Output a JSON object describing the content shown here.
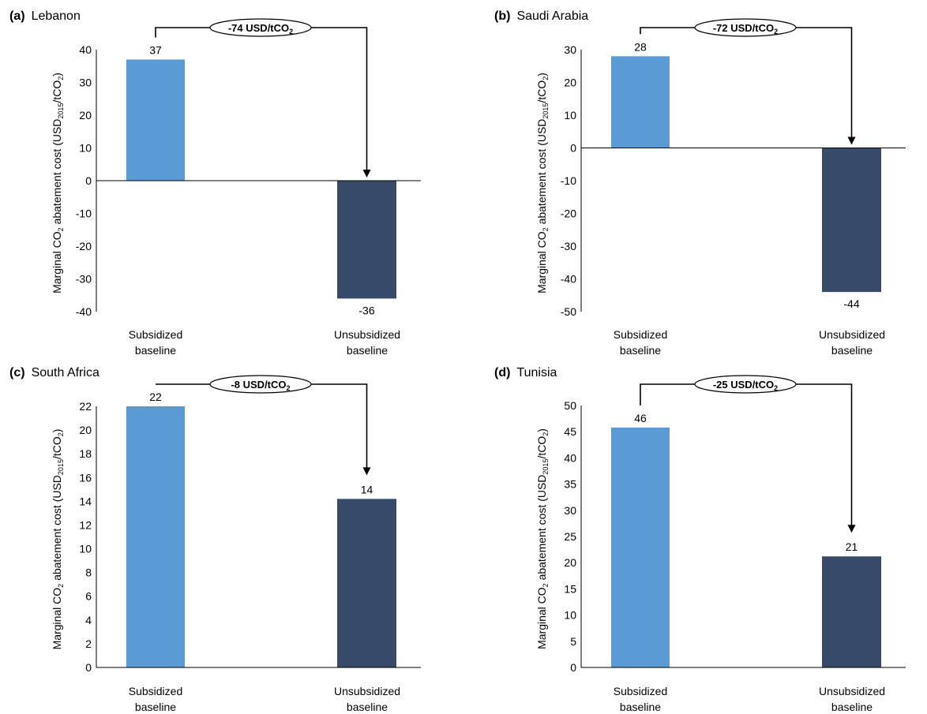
{
  "figure": {
    "ylabel_prefix": "Marginal CO",
    "ylabel_sub_co2": "2",
    "ylabel_middle": " abatement cost (USD",
    "ylabel_sub_year": "2015",
    "ylabel_tail": "/tCO",
    "ylabel_sub_tail": "2",
    "ylabel_close": ")",
    "colors": {
      "subsidized": "#5B9BD5",
      "unsubsidized": "#374A69",
      "axis": "#000000"
    }
  },
  "chart_data": [
    {
      "type": "bar",
      "panel_letter": "(a)",
      "title": "Lebanon",
      "categories": [
        {
          "line1": "Subsidized",
          "line2": "baseline"
        },
        {
          "line1": "Unsubsidized",
          "line2": "baseline"
        }
      ],
      "values": [
        37,
        -36
      ],
      "value_labels": [
        "37",
        "-36"
      ],
      "ylim": [
        -40,
        40
      ],
      "yticks": [
        40,
        30,
        20,
        10,
        0,
        -10,
        -20,
        -30,
        -40
      ],
      "ytick_labels": [
        "40",
        "30",
        "20",
        "10",
        "0",
        "-10",
        "-20",
        "-30",
        "-40"
      ],
      "change_label": "-74 USD/tCO",
      "change_label_sub": "2"
    },
    {
      "type": "bar",
      "panel_letter": "(b)",
      "title": "Saudi Arabia",
      "categories": [
        {
          "line1": "Subsidized",
          "line2": "baseline"
        },
        {
          "line1": "Unsubsidized",
          "line2": "baseline"
        }
      ],
      "values": [
        28,
        -44
      ],
      "value_labels": [
        "28",
        "-44"
      ],
      "ylim": [
        -50,
        30
      ],
      "yticks": [
        30,
        20,
        10,
        0,
        -10,
        -20,
        -30,
        -40,
        -50
      ],
      "ytick_labels": [
        "30",
        "20",
        "10",
        "0",
        "-10",
        "-20",
        "-30",
        "-40",
        "-50"
      ],
      "change_label": "-72 USD/tCO",
      "change_label_sub": "2"
    },
    {
      "type": "bar",
      "panel_letter": "(c)",
      "title": "South Africa",
      "categories": [
        {
          "line1": "Subsidized",
          "line2": "baseline"
        },
        {
          "line1": "Unsubsidized",
          "line2": "baseline"
        }
      ],
      "values": [
        22,
        14.2
      ],
      "value_labels": [
        "22",
        "14"
      ],
      "ylim": [
        0,
        22
      ],
      "yticks": [
        22,
        20,
        18,
        16,
        14,
        12,
        10,
        8,
        6,
        4,
        2,
        0
      ],
      "ytick_labels": [
        "22",
        "20",
        "18",
        "16",
        "14",
        "12",
        "10",
        "8",
        "6",
        "4",
        "2",
        "0"
      ],
      "change_label": "-8 USD/tCO",
      "change_label_sub": "2"
    },
    {
      "type": "bar",
      "panel_letter": "(d)",
      "title": "Tunisia",
      "categories": [
        {
          "line1": "Subsidized",
          "line2": "baseline"
        },
        {
          "line1": "Unsubsidized",
          "line2": "baseline"
        }
      ],
      "values": [
        45.8,
        21.2
      ],
      "value_labels": [
        "46",
        "21"
      ],
      "ylim": [
        0,
        50
      ],
      "yticks": [
        50,
        45,
        40,
        35,
        30,
        25,
        20,
        15,
        10,
        5,
        0
      ],
      "ytick_labels": [
        "50",
        "45",
        "40",
        "35",
        "30",
        "25",
        "20",
        "15",
        "10",
        "5",
        "0"
      ],
      "change_label": "-25 USD/tCO",
      "change_label_sub": "2"
    }
  ]
}
